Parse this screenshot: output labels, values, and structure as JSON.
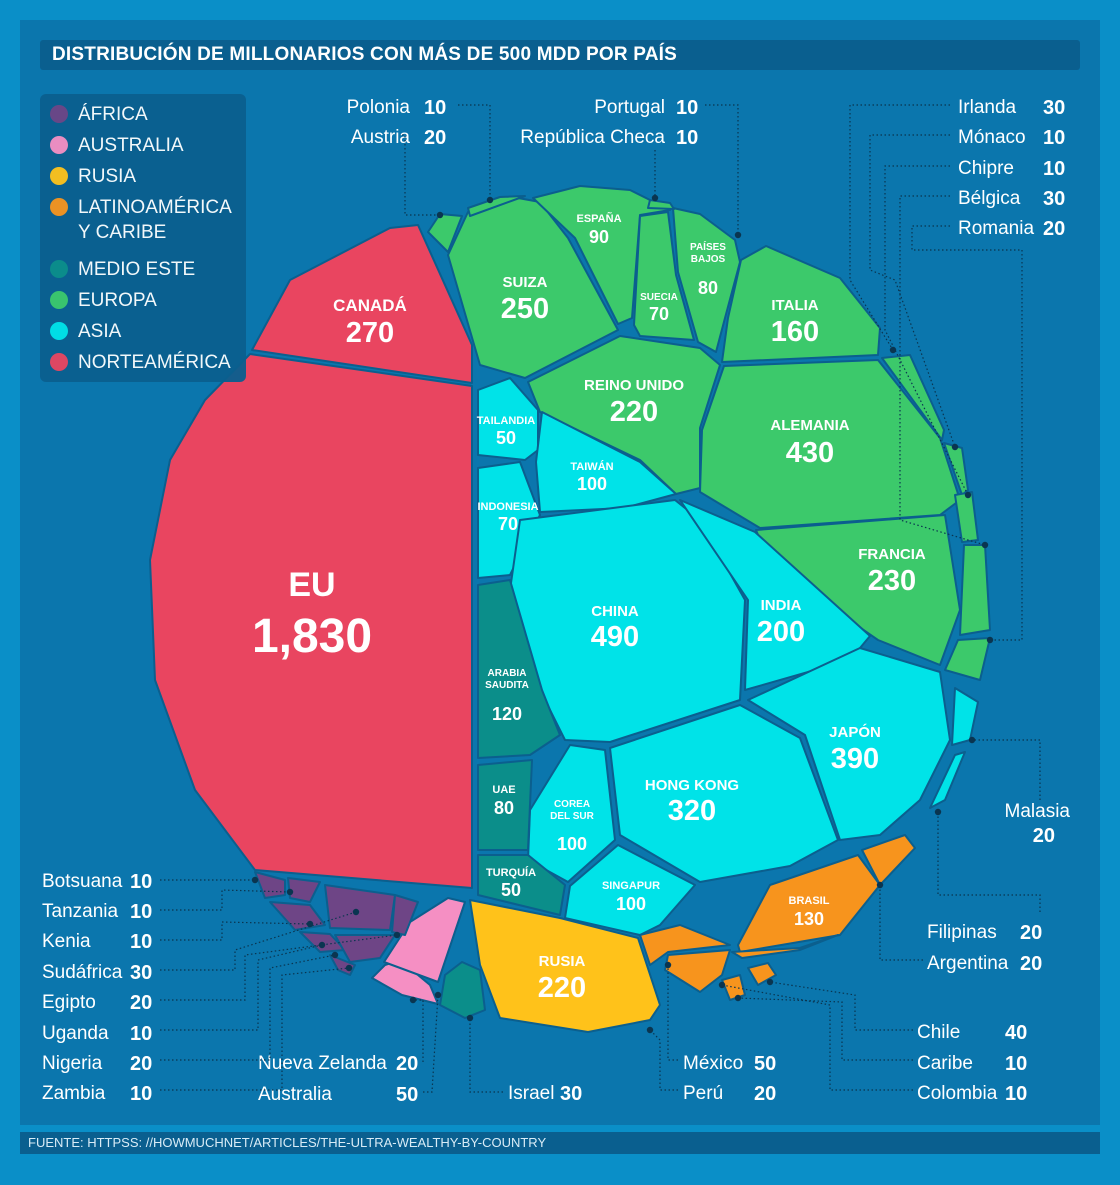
{
  "title": "DISTRIBUCIÓN DE MILLONARIOS CON MÁS DE 500 MDD POR PAÍS",
  "source": "FUENTE: HTTPSS: //HOWMUCHNET/ARTICLES/THE-ULTRA-WEALTHY-BY-COUNTRY",
  "colors": {
    "africa": "#6e4586",
    "australia": "#f58fc3",
    "rusia": "#ffc21a",
    "latinoamerica": "#f7941d",
    "medio_este": "#0b8e8a",
    "europa": "#3cc96b",
    "asia": "#00e3e8",
    "norteamerica": "#e94560"
  },
  "legend": [
    {
      "label": "ÁFRICA",
      "color": "#6e4586"
    },
    {
      "label": "AUSTRALIA",
      "color": "#f58fc3"
    },
    {
      "label": "RUSIA",
      "color": "#ffc21a"
    },
    {
      "label": "LATINOAMÉRICA",
      "label2": "Y CARIBE",
      "color": "#f7941d"
    },
    {
      "label": "MEDIO ESTE",
      "color": "#0b8e8a"
    },
    {
      "label": "EUROPA",
      "color": "#3cc96b"
    },
    {
      "label": "ASIA",
      "color": "#00e3e8"
    },
    {
      "label": "NORTEAMÉRICA",
      "color": "#e94560"
    }
  ],
  "chart_data": {
    "type": "voronoi-treemap",
    "unit": "millonarios con más de 500 MDD",
    "regions": [
      {
        "region": "NORTEAMÉRICA",
        "countries": [
          {
            "name": "EU",
            "value": "1,830"
          },
          {
            "name": "CANADÁ",
            "value": "270"
          }
        ]
      },
      {
        "region": "EUROPA",
        "countries": [
          {
            "name": "SUIZA",
            "value": "250"
          },
          {
            "name": "ESPAÑA",
            "value": "90"
          },
          {
            "name": "SUECIA",
            "value": "70"
          },
          {
            "name": "PAÍSES BAJOS",
            "value": "80"
          },
          {
            "name": "ITALIA",
            "value": "160"
          },
          {
            "name": "REINO UNIDO",
            "value": "220"
          },
          {
            "name": "ALEMANIA",
            "value": "430"
          },
          {
            "name": "FRANCIA",
            "value": "230"
          },
          {
            "name": "Polonia",
            "value": "10"
          },
          {
            "name": "Austria",
            "value": "20"
          },
          {
            "name": "Portugal",
            "value": "10"
          },
          {
            "name": "República Checa",
            "value": "10"
          },
          {
            "name": "Irlanda",
            "value": "30"
          },
          {
            "name": "Mónaco",
            "value": "10"
          },
          {
            "name": "Chipre",
            "value": "10"
          },
          {
            "name": "Bélgica",
            "value": "30"
          },
          {
            "name": "Romania",
            "value": "20"
          }
        ]
      },
      {
        "region": "ASIA",
        "countries": [
          {
            "name": "TAILANDIA",
            "value": "50"
          },
          {
            "name": "TAIWÁN",
            "value": "100"
          },
          {
            "name": "INDONESIA",
            "value": "70"
          },
          {
            "name": "CHINA",
            "value": "490"
          },
          {
            "name": "INDIA",
            "value": "200"
          },
          {
            "name": "JAPÓN",
            "value": "390"
          },
          {
            "name": "HONG KONG",
            "value": "320"
          },
          {
            "name": "COREA DEL SUR",
            "value": "100"
          },
          {
            "name": "SINGAPUR",
            "value": "100"
          },
          {
            "name": "Malasia",
            "value": "20"
          },
          {
            "name": "Filipinas",
            "value": "20"
          }
        ]
      },
      {
        "region": "MEDIO ESTE",
        "countries": [
          {
            "name": "ARABIA SAUDITA",
            "value": "120"
          },
          {
            "name": "UAE",
            "value": "80"
          },
          {
            "name": "TURQUÍA",
            "value": "50"
          },
          {
            "name": "Israel",
            "value": "30"
          }
        ]
      },
      {
        "region": "RUSIA",
        "countries": [
          {
            "name": "RUSIA",
            "value": "220"
          }
        ]
      },
      {
        "region": "LATINOAMÉRICA Y CARIBE",
        "countries": [
          {
            "name": "BRASIL",
            "value": "130"
          },
          {
            "name": "Argentina",
            "value": "20"
          },
          {
            "name": "Chile",
            "value": "40"
          },
          {
            "name": "Caribe",
            "value": "10"
          },
          {
            "name": "Colombia",
            "value": "10"
          },
          {
            "name": "México",
            "value": "50"
          },
          {
            "name": "Perú",
            "value": "20"
          }
        ]
      },
      {
        "region": "AUSTRALIA",
        "countries": [
          {
            "name": "Nueva Zelanda",
            "value": "20"
          },
          {
            "name": "Australia",
            "value": "50"
          }
        ]
      },
      {
        "region": "ÁFRICA",
        "countries": [
          {
            "name": "Botsuana",
            "value": "10"
          },
          {
            "name": "Tanzania",
            "value": "10"
          },
          {
            "name": "Kenia",
            "value": "10"
          },
          {
            "name": "Sudáfrica",
            "value": "30"
          },
          {
            "name": "Egipto",
            "value": "20"
          },
          {
            "name": "Uganda",
            "value": "10"
          },
          {
            "name": "Nigeria",
            "value": "20"
          },
          {
            "name": "Zambia",
            "value": "10"
          }
        ]
      }
    ]
  }
}
